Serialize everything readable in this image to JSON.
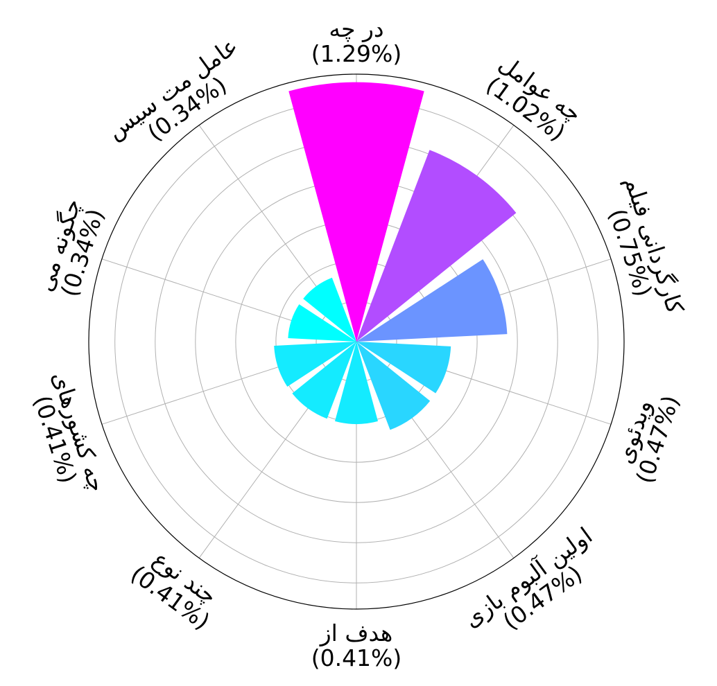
{
  "chart_data": {
    "type": "bar",
    "subtype": "polar",
    "title": "",
    "categories": [
      "در چه",
      "چه عوامل",
      "کارگردانی فیلم",
      "ویدئوی",
      "اولین آلبوم بازی",
      "هدف از",
      "چند نوع",
      "چه کشورهای",
      "چگونه می",
      "عامل مت سیس"
    ],
    "value_labels": [
      "(1.29%)",
      "(1.02%)",
      "(0.75%)",
      "(0.47%)",
      "(0.47%)",
      "(0.41%)",
      "(0.41%)",
      "(0.41%)",
      "(0.34%)",
      "(0.34%)"
    ],
    "values": [
      1.29,
      1.02,
      0.75,
      0.47,
      0.47,
      0.41,
      0.41,
      0.41,
      0.34,
      0.34
    ],
    "colors": [
      "#ff00ff",
      "#b24dff",
      "#6b94ff",
      "#29d6ff",
      "#29d6ff",
      "#14ebff",
      "#14ebff",
      "#14ebff",
      "#00ffff",
      "#00ffff"
    ],
    "grid": true,
    "rlim": [
      0,
      1.33
    ]
  }
}
